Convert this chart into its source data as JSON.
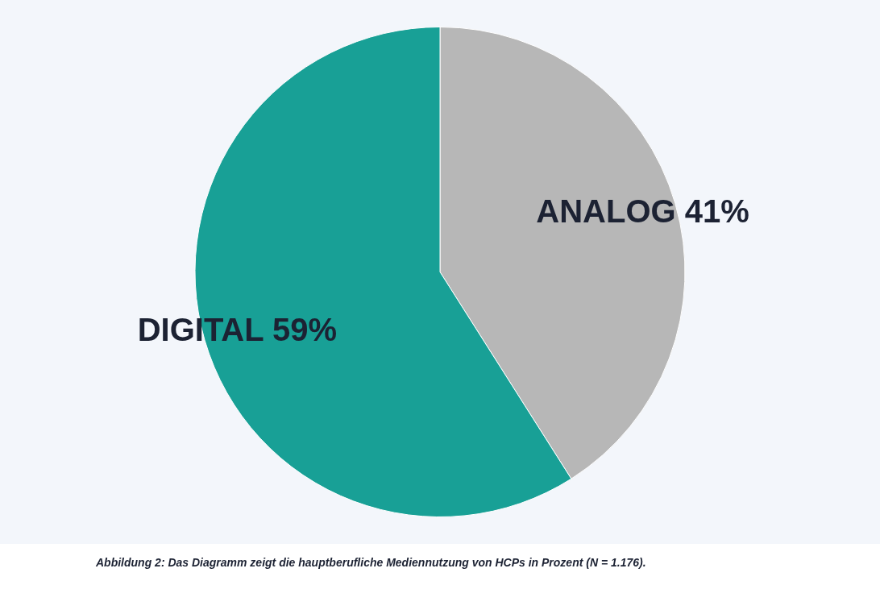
{
  "chart_data": {
    "type": "pie",
    "categories": [
      "ANALOG",
      "DIGITAL"
    ],
    "values": [
      41,
      59
    ],
    "colors": [
      "#b7b7b7",
      "#18a096"
    ],
    "value_labels": [
      "41%",
      "59%"
    ],
    "annotations": [
      "Abbildung 2: Das Diagramm zeigt die hauptberufliche Mediennutzung von HCPs in Prozent (N = 1.176)."
    ]
  }
}
